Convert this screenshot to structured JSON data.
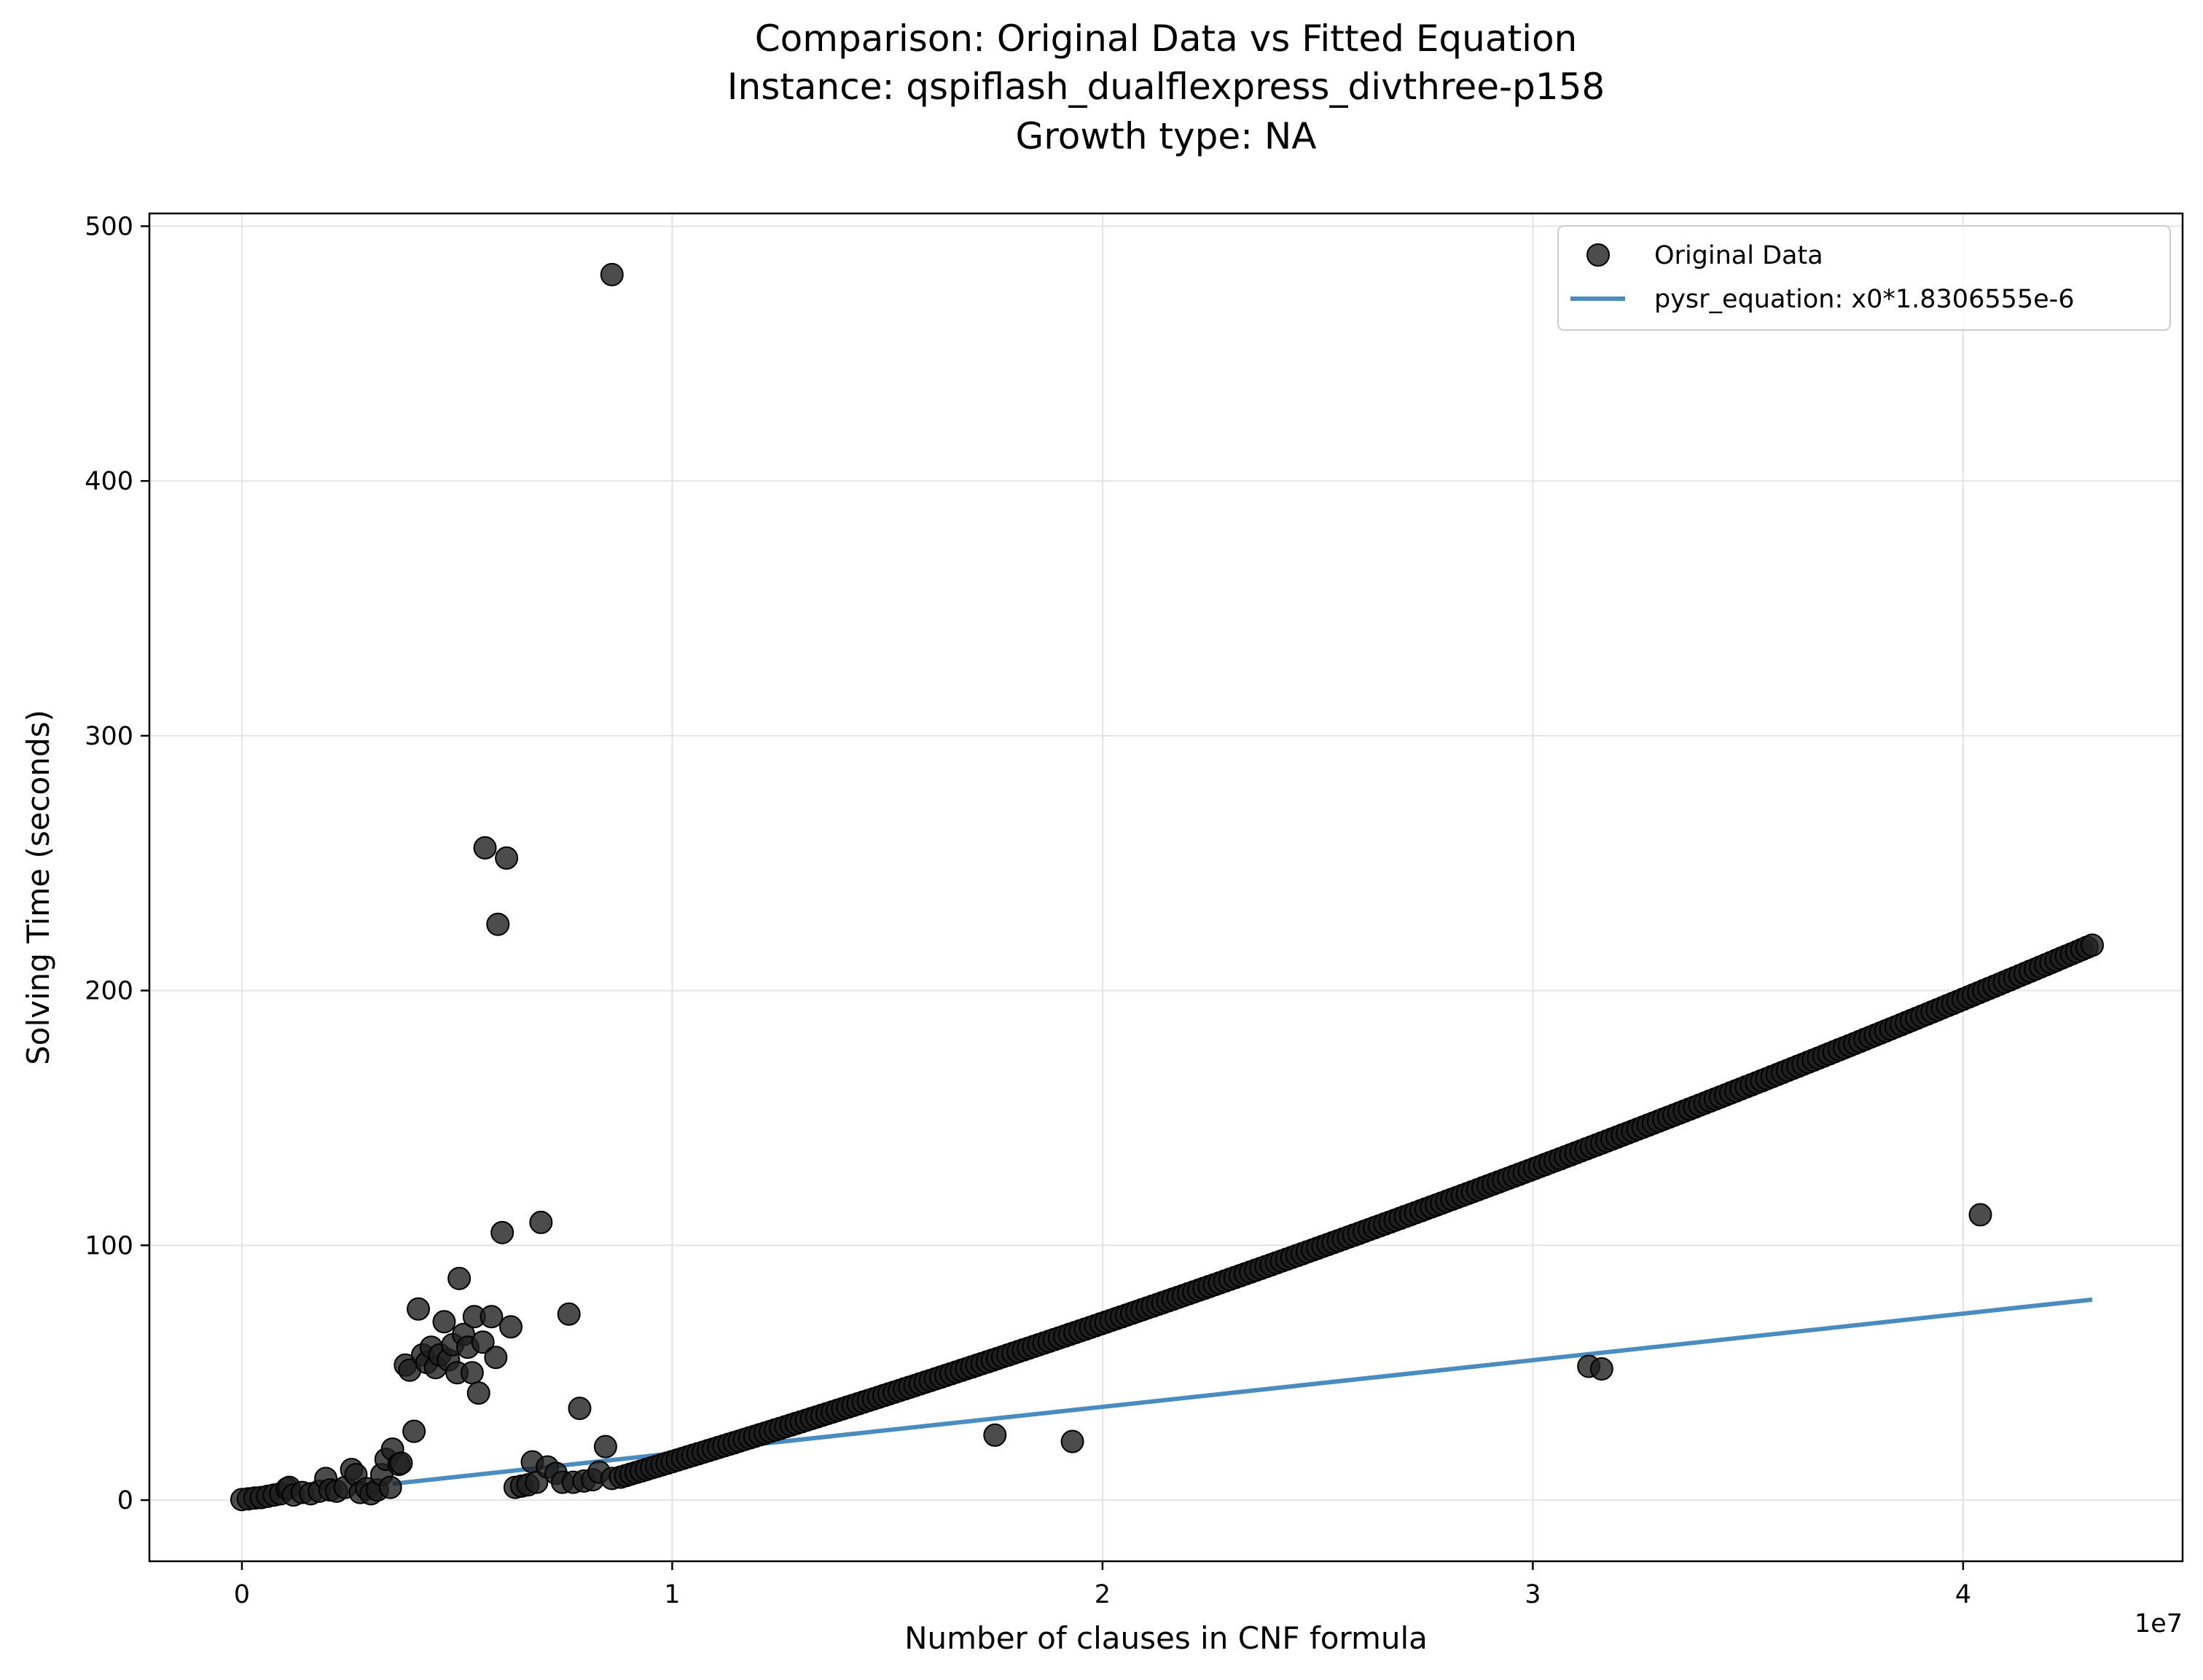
{
  "chart_data": {
    "type": "scatter",
    "title_lines": [
      "Comparison: Original Data vs Fitted Equation",
      "Instance: qspiflash_dualflexpress_divthree-p158",
      "Growth type: NA"
    ],
    "xlabel": "Number of clauses in CNF formula",
    "ylabel": "Solving Time (seconds)",
    "x_offset_text": "1e7",
    "x_scale_factor": 10000000,
    "xlim": [
      -2150000,
      45100000
    ],
    "ylim": [
      -24,
      505
    ],
    "x_ticks": [
      0,
      10000000,
      20000000,
      30000000,
      40000000
    ],
    "x_tick_labels": [
      "0",
      "1",
      "2",
      "3",
      "4"
    ],
    "y_ticks": [
      0,
      100,
      200,
      300,
      400,
      500
    ],
    "y_tick_labels": [
      "0",
      "100",
      "200",
      "300",
      "400",
      "500"
    ],
    "grid": true,
    "legend_position": "upper right",
    "legend": [
      {
        "label": "Original Data",
        "marker": "circle",
        "color": "#1f1f1f"
      },
      {
        "label": "pysr_equation: x0*1.8306555e-6",
        "marker": "line",
        "color": "#4a8cbf"
      }
    ],
    "series": [
      {
        "name": "Original Data",
        "kind": "scatter",
        "color": "#1f1f1f",
        "trend_note": "dense band from x=8.8e6 to 4.3e7 where y rises roughly as 4.5e-6*x + 3.1e-14*x^2 - 33",
        "points": [
          [
            0,
            0.2
          ],
          [
            150000,
            0.5
          ],
          [
            300000,
            0.8
          ],
          [
            450000,
            1.0
          ],
          [
            600000,
            1.5
          ],
          [
            750000,
            2.0
          ],
          [
            900000,
            2.5
          ],
          [
            1050000,
            4.5
          ],
          [
            1100000,
            5.0
          ],
          [
            1200000,
            2.0
          ],
          [
            1400000,
            3.0
          ],
          [
            1600000,
            2.5
          ],
          [
            1800000,
            3.5
          ],
          [
            1950000,
            8.5
          ],
          [
            2050000,
            4.0
          ],
          [
            2200000,
            3.5
          ],
          [
            2400000,
            5.0
          ],
          [
            2550000,
            12.0
          ],
          [
            2650000,
            10.0
          ],
          [
            2750000,
            3.0
          ],
          [
            2900000,
            4.5
          ],
          [
            3000000,
            2.5
          ],
          [
            3150000,
            4.0
          ],
          [
            3250000,
            10.0
          ],
          [
            3350000,
            16.0
          ],
          [
            3450000,
            5.0
          ],
          [
            3500000,
            20.0
          ],
          [
            3650000,
            14.0
          ],
          [
            3700000,
            14.5
          ],
          [
            3800000,
            53.0
          ],
          [
            3900000,
            51.0
          ],
          [
            4000000,
            27.0
          ],
          [
            4100000,
            75.0
          ],
          [
            4200000,
            57.0
          ],
          [
            4300000,
            54.0
          ],
          [
            4400000,
            60.0
          ],
          [
            4500000,
            52.0
          ],
          [
            4600000,
            57.0
          ],
          [
            4700000,
            70.0
          ],
          [
            4800000,
            55.0
          ],
          [
            4900000,
            61.0
          ],
          [
            5000000,
            50.0
          ],
          [
            5050000,
            87.0
          ],
          [
            5150000,
            65.0
          ],
          [
            5250000,
            60.0
          ],
          [
            5350000,
            50.0
          ],
          [
            5400000,
            72.0
          ],
          [
            5500000,
            42.0
          ],
          [
            5600000,
            62.0
          ],
          [
            5650000,
            256.0
          ],
          [
            5800000,
            72.0
          ],
          [
            5900000,
            56.0
          ],
          [
            5950000,
            226.0
          ],
          [
            6050000,
            105.0
          ],
          [
            6150000,
            252.0
          ],
          [
            6250000,
            68.0
          ],
          [
            6350000,
            5.0
          ],
          [
            6500000,
            5.5
          ],
          [
            6650000,
            6.0
          ],
          [
            6750000,
            15.0
          ],
          [
            6850000,
            7.0
          ],
          [
            6950000,
            109.0
          ],
          [
            7100000,
            13.0
          ],
          [
            7300000,
            10.5
          ],
          [
            7450000,
            7.0
          ],
          [
            7600000,
            73.0
          ],
          [
            7700000,
            7.0
          ],
          [
            7850000,
            36.0
          ],
          [
            7950000,
            7.5
          ],
          [
            8150000,
            8.0
          ],
          [
            8300000,
            11.0
          ],
          [
            8450000,
            21.0
          ],
          [
            8600000,
            8.5
          ],
          [
            8600000,
            481.0
          ],
          [
            17500000,
            25.5
          ],
          [
            19300000,
            23.0
          ],
          [
            31300000,
            52.5
          ],
          [
            31600000,
            51.5
          ],
          [
            40400000,
            112.0
          ]
        ]
      },
      {
        "name": "pysr_equation: x0*1.8306555e-6",
        "kind": "line",
        "color": "#4a8cbf",
        "x": [
          3500000,
          43000000
        ],
        "y": [
          6.4,
          78.7
        ]
      }
    ]
  }
}
